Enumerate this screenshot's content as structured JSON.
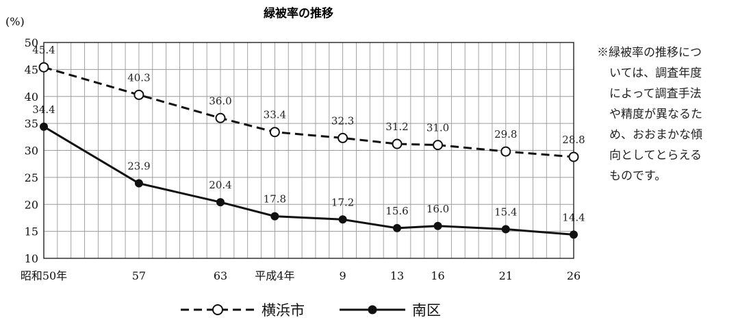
{
  "chart_data": {
    "type": "line",
    "title": "緑被率の推移",
    "ylabel": "(%)",
    "ylim": [
      10,
      50
    ],
    "yticks": [
      10,
      15,
      20,
      25,
      30,
      35,
      40,
      45,
      50
    ],
    "x": [
      1975,
      1982,
      1988,
      1992,
      1997,
      2001,
      2004,
      2009,
      2014
    ],
    "xtick_labels": [
      "昭和50年",
      "57",
      "63",
      "平成4年",
      "9",
      "13",
      "16",
      "21",
      "26"
    ],
    "grid": true,
    "legend_position": "bottom",
    "series": [
      {
        "name": "横浜市",
        "style": "dashed",
        "marker": "open-circle",
        "values": [
          45.4,
          40.3,
          36.0,
          33.4,
          32.3,
          31.2,
          31.0,
          29.8,
          28.8
        ],
        "labels": [
          "45.4",
          "40.3",
          "36.0",
          "33.4",
          "32.3",
          "31.2",
          "31.0",
          "29.8",
          "28.8"
        ]
      },
      {
        "name": "南区",
        "style": "solid",
        "marker": "filled-circle",
        "values": [
          34.4,
          23.9,
          20.4,
          17.8,
          17.2,
          15.6,
          16.0,
          15.4,
          14.4
        ],
        "labels": [
          "34.4",
          "23.9",
          "20.4",
          "17.8",
          "17.2",
          "15.6",
          "16.0",
          "15.4",
          "14.4"
        ]
      }
    ]
  },
  "note": {
    "lines": [
      "※緑被率の推移につ",
      "いては、調査年度",
      "によって調査手法",
      "や精度が異なるた",
      "め、おおまかな傾",
      "向としてとらえる",
      "ものです。"
    ]
  },
  "colors": {
    "line": "#111111",
    "grid": "#9a9a9a",
    "axis": "#222222"
  }
}
